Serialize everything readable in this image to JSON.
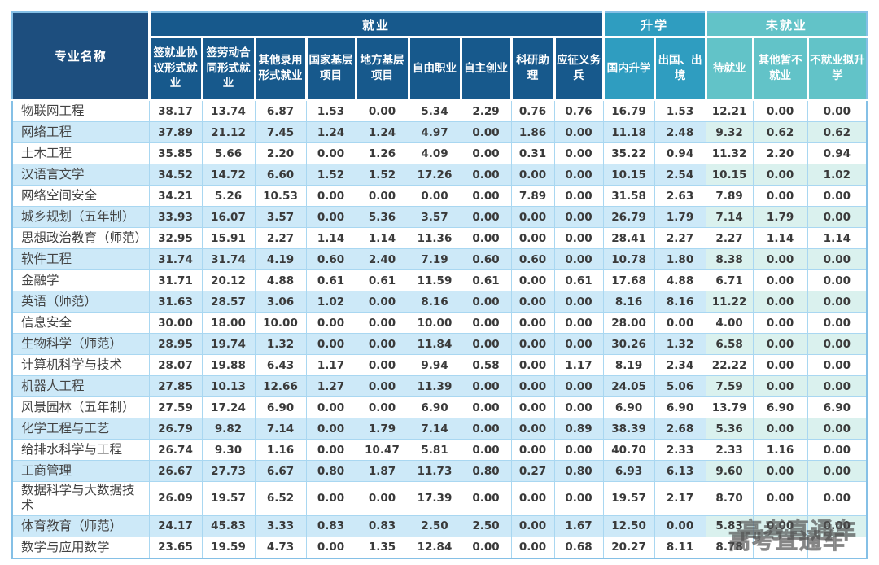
{
  "colors": {
    "header_dark": "#1d4e7e",
    "employment": "#17598c",
    "further_study": "#2f9dc0",
    "unemployed": "#62c3c8",
    "zebra_blue": "#cde9f8",
    "zebra_teal": "#daf1ee",
    "grid": "#a9d7f1",
    "outer_border": "#85c0e6"
  },
  "watermark": {
    "text": "高考直通车"
  },
  "table": {
    "corner_header": "专业名称",
    "groups": [
      {
        "label": "就业",
        "span": 9
      },
      {
        "label": "升学",
        "span": 2
      },
      {
        "label": "未就业",
        "span": 3
      }
    ],
    "columns": [
      "签就业协议形式就业",
      "签劳动合同形式就业",
      "其他录用形式就业",
      "国家基层项目",
      "地方基层项目",
      "自由职业",
      "自主创业",
      "科研助理",
      "应征义务兵",
      "国内升学",
      "出国、出境",
      "待就业",
      "其他暂不就业",
      "不就业拟升学"
    ],
    "rows": [
      {
        "major": "物联网工程",
        "values": [
          "38.17",
          "13.74",
          "6.87",
          "1.53",
          "0.00",
          "5.34",
          "2.29",
          "0.76",
          "0.76",
          "16.79",
          "1.53",
          "12.21",
          "0.00",
          "0.00"
        ]
      },
      {
        "major": "网络工程",
        "values": [
          "37.89",
          "21.12",
          "7.45",
          "1.24",
          "1.24",
          "4.97",
          "0.00",
          "1.86",
          "0.00",
          "11.18",
          "2.48",
          "9.32",
          "0.62",
          "0.62"
        ]
      },
      {
        "major": "土木工程",
        "values": [
          "35.85",
          "5.66",
          "2.20",
          "0.00",
          "1.26",
          "4.09",
          "0.00",
          "0.31",
          "0.00",
          "35.22",
          "0.94",
          "11.32",
          "2.20",
          "0.94"
        ]
      },
      {
        "major": "汉语言文学",
        "values": [
          "34.52",
          "14.72",
          "6.60",
          "1.52",
          "1.52",
          "17.26",
          "0.00",
          "0.00",
          "0.00",
          "10.15",
          "2.54",
          "10.15",
          "0.00",
          "1.02"
        ]
      },
      {
        "major": "网络空间安全",
        "values": [
          "34.21",
          "5.26",
          "10.53",
          "0.00",
          "0.00",
          "0.00",
          "0.00",
          "7.89",
          "0.00",
          "31.58",
          "2.63",
          "7.89",
          "0.00",
          "0.00"
        ]
      },
      {
        "major": "城乡规划（五年制）",
        "values": [
          "33.93",
          "16.07",
          "3.57",
          "0.00",
          "5.36",
          "3.57",
          "0.00",
          "0.00",
          "0.00",
          "26.79",
          "1.79",
          "7.14",
          "1.79",
          "0.00"
        ]
      },
      {
        "major": "思想政治教育（师范）",
        "values": [
          "32.95",
          "15.91",
          "2.27",
          "1.14",
          "1.14",
          "11.36",
          "0.00",
          "0.00",
          "0.00",
          "28.41",
          "2.27",
          "2.27",
          "1.14",
          "1.14"
        ]
      },
      {
        "major": "软件工程",
        "values": [
          "31.74",
          "31.74",
          "4.19",
          "0.60",
          "2.40",
          "7.19",
          "0.60",
          "0.60",
          "0.00",
          "10.78",
          "1.80",
          "8.38",
          "0.00",
          "0.00"
        ]
      },
      {
        "major": "金融学",
        "values": [
          "31.71",
          "20.12",
          "4.88",
          "0.61",
          "0.61",
          "11.59",
          "0.61",
          "0.00",
          "0.61",
          "17.68",
          "4.88",
          "6.71",
          "0.00",
          "0.00"
        ]
      },
      {
        "major": "英语（师范）",
        "values": [
          "31.63",
          "28.57",
          "3.06",
          "1.02",
          "0.00",
          "8.16",
          "0.00",
          "0.00",
          "0.00",
          "8.16",
          "8.16",
          "11.22",
          "0.00",
          "0.00"
        ]
      },
      {
        "major": "信息安全",
        "values": [
          "30.00",
          "18.00",
          "10.00",
          "0.00",
          "0.00",
          "10.00",
          "0.00",
          "0.00",
          "0.00",
          "28.00",
          "0.00",
          "4.00",
          "0.00",
          "0.00"
        ]
      },
      {
        "major": "生物科学（师范）",
        "values": [
          "28.95",
          "19.74",
          "1.32",
          "0.00",
          "0.00",
          "11.84",
          "0.00",
          "0.00",
          "0.00",
          "30.26",
          "1.32",
          "6.58",
          "0.00",
          "0.00"
        ]
      },
      {
        "major": "计算机科学与技术",
        "values": [
          "28.07",
          "19.88",
          "6.43",
          "1.17",
          "0.00",
          "9.94",
          "0.58",
          "0.00",
          "1.17",
          "8.19",
          "2.34",
          "22.22",
          "0.00",
          "0.00"
        ]
      },
      {
        "major": "机器人工程",
        "values": [
          "27.85",
          "10.13",
          "12.66",
          "1.27",
          "0.00",
          "11.39",
          "0.00",
          "0.00",
          "0.00",
          "24.05",
          "5.06",
          "7.59",
          "0.00",
          "0.00"
        ]
      },
      {
        "major": "风景园林（五年制）",
        "values": [
          "27.59",
          "17.24",
          "6.90",
          "0.00",
          "0.00",
          "6.90",
          "0.00",
          "0.00",
          "0.00",
          "6.90",
          "6.90",
          "13.79",
          "6.90",
          "6.90"
        ]
      },
      {
        "major": "化学工程与工艺",
        "values": [
          "26.79",
          "9.82",
          "7.14",
          "0.00",
          "1.79",
          "7.14",
          "0.00",
          "0.00",
          "0.89",
          "38.39",
          "2.68",
          "5.36",
          "0.00",
          "0.00"
        ]
      },
      {
        "major": "给排水科学与工程",
        "values": [
          "26.74",
          "9.30",
          "1.16",
          "0.00",
          "10.47",
          "5.81",
          "0.00",
          "0.00",
          "0.00",
          "40.70",
          "2.33",
          "2.33",
          "1.16",
          "0.00"
        ]
      },
      {
        "major": "工商管理",
        "values": [
          "26.67",
          "27.73",
          "6.67",
          "0.80",
          "1.87",
          "11.73",
          "0.80",
          "0.27",
          "0.80",
          "6.93",
          "6.13",
          "9.60",
          "0.00",
          "0.00"
        ]
      },
      {
        "major": "数据科学与大数据技术",
        "values": [
          "26.09",
          "19.57",
          "6.52",
          "0.00",
          "0.00",
          "17.39",
          "0.00",
          "0.00",
          "0.00",
          "19.57",
          "2.17",
          "8.70",
          "0.00",
          "0.00"
        ]
      },
      {
        "major": "体育教育（师范）",
        "values": [
          "24.17",
          "45.83",
          "3.33",
          "0.83",
          "0.83",
          "2.50",
          "2.50",
          "0.00",
          "1.67",
          "12.50",
          "0.00",
          "5.83",
          "0.00",
          "0.00"
        ]
      },
      {
        "major": "数学与应用数学",
        "values": [
          "23.65",
          "19.59",
          "4.73",
          "0.00",
          "1.35",
          "12.84",
          "0.00",
          "0.00",
          "0.68",
          "20.27",
          "8.11",
          "8.78",
          "",
          ""
        ]
      }
    ]
  }
}
